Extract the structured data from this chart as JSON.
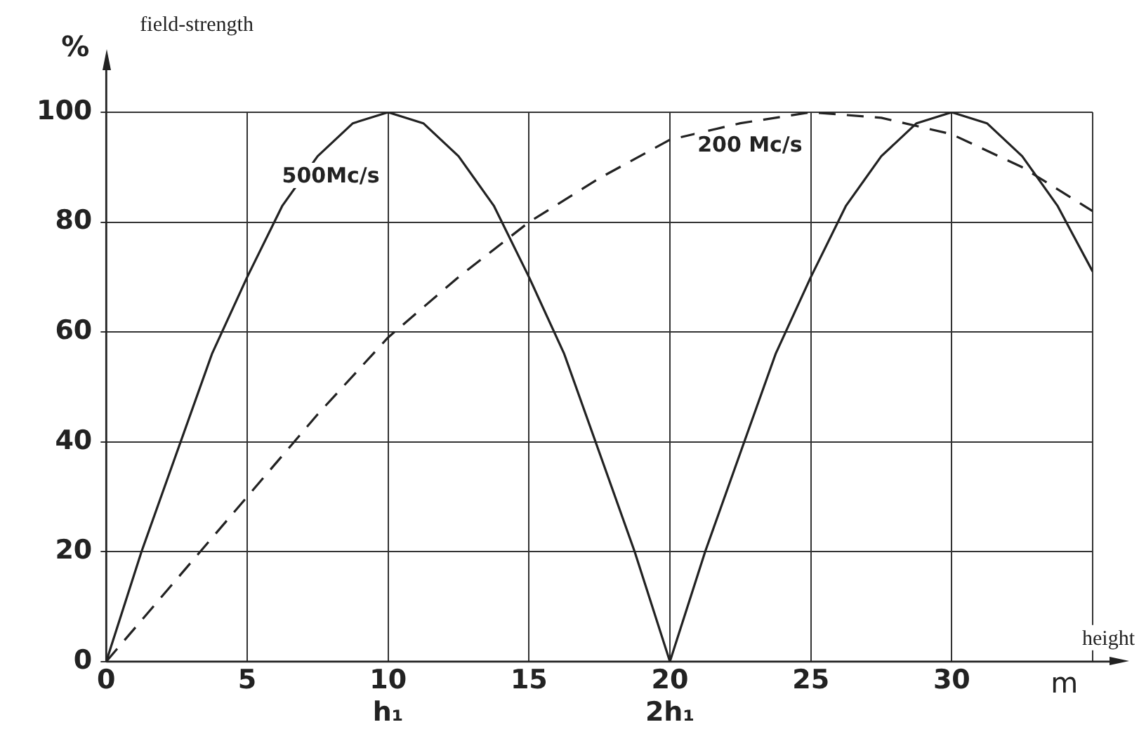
{
  "chart_data": {
    "type": "line",
    "ylabel": "field-strength",
    "xlabel": "height",
    "xlim": [
      0,
      35
    ],
    "xticks": [
      0,
      5,
      {
        "value": 10,
        "label": "10\nh₁"
      },
      15,
      {
        "value": 20,
        "label": "20\n2h₁"
      },
      25,
      30,
      {
        "value": 35,
        "label": null
      }
    ],
    "ylim": [
      0,
      100
    ],
    "yticks": [
      0,
      20,
      40,
      60,
      80,
      100
    ],
    "grid": true,
    "legend": false,
    "marker": "none",
    "annotations": [
      "%",
      "m"
    ],
    "series": [
      {
        "name": "500Mc/s",
        "color": "#222222",
        "line_style": "solid",
        "x": [
          0,
          1.25,
          2.5,
          3.75,
          5,
          6.25,
          7.5,
          8.75,
          10,
          11.25,
          12.5,
          13.75,
          15,
          16.25,
          17.5,
          18.75,
          20,
          21.25,
          22.5,
          23.75,
          25,
          26.25,
          27.5,
          28.75,
          30,
          31.25,
          32.5,
          33.75,
          35
        ],
        "values": [
          0,
          20,
          38,
          56,
          70,
          83,
          92,
          98,
          100,
          98,
          92,
          83,
          70,
          56,
          38,
          20,
          0,
          20,
          38,
          56,
          70,
          83,
          92,
          98,
          100,
          98,
          92,
          83,
          71
        ]
      },
      {
        "name": "200 Mc/s",
        "color": "#222222",
        "line_style": "dashed",
        "x": [
          0,
          2.5,
          5,
          7.5,
          10,
          12.5,
          15,
          17.5,
          20,
          22.5,
          25,
          27.5,
          30,
          32.5,
          35
        ],
        "values": [
          0,
          15,
          30,
          45,
          59,
          70,
          80,
          88,
          95,
          98,
          100,
          99,
          96,
          90,
          82
        ]
      }
    ]
  }
}
